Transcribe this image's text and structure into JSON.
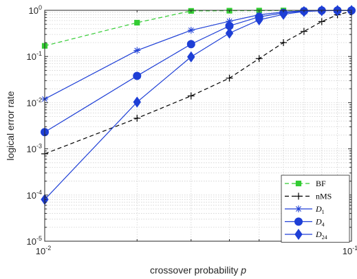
{
  "chart_data": {
    "type": "line",
    "xlabel": "crossover probability",
    "xlabel_var": "p",
    "ylabel": "logical error rate",
    "xscale": "log",
    "yscale": "log",
    "xlim": [
      0.01,
      0.1
    ],
    "ylim": [
      1e-05,
      1
    ],
    "grid": true,
    "minor_grid": true,
    "legend_position": "bottom-right",
    "x_ticks": [
      {
        "base": "10",
        "exp": "-2"
      },
      {
        "base": "10",
        "exp": "-1"
      }
    ],
    "y_ticks": [
      {
        "base": "10",
        "exp": "-5"
      },
      {
        "base": "10",
        "exp": "-4"
      },
      {
        "base": "10",
        "exp": "-3"
      },
      {
        "base": "10",
        "exp": "-2"
      },
      {
        "base": "10",
        "exp": "-1"
      },
      {
        "base": "10",
        "exp": "0"
      }
    ],
    "series": [
      {
        "name": "BF",
        "color": "#33cc33",
        "dash": "dashed",
        "marker": "square",
        "x": [
          0.01,
          0.02,
          0.03,
          0.04,
          0.05,
          0.06,
          0.07,
          0.08,
          0.09,
          0.1
        ],
        "y": [
          0.17,
          0.54,
          0.97,
          0.98,
          0.985,
          0.99,
          0.99,
          0.99,
          0.99,
          0.99
        ]
      },
      {
        "name": "nMS",
        "color": "#000000",
        "dash": "dashed",
        "marker": "plus",
        "x": [
          0.01,
          0.02,
          0.03,
          0.04,
          0.05,
          0.06,
          0.07,
          0.08,
          0.09,
          0.1
        ],
        "y": [
          0.00078,
          0.0046,
          0.014,
          0.034,
          0.09,
          0.2,
          0.35,
          0.57,
          0.8,
          0.95
        ]
      },
      {
        "name": "D",
        "name_sub": "1",
        "color": "#1e3fd6",
        "dash": "solid",
        "marker": "asterisk",
        "x": [
          0.01,
          0.02,
          0.03,
          0.04,
          0.05,
          0.06,
          0.07,
          0.08,
          0.09,
          0.1
        ],
        "y": [
          0.012,
          0.135,
          0.37,
          0.58,
          0.8,
          0.92,
          0.97,
          0.99,
          0.99,
          0.99
        ]
      },
      {
        "name": "D",
        "name_sub": "4",
        "color": "#1e3fd6",
        "dash": "solid",
        "marker": "circle",
        "x": [
          0.01,
          0.02,
          0.03,
          0.04,
          0.05,
          0.06,
          0.07,
          0.08,
          0.09,
          0.1
        ],
        "y": [
          0.0023,
          0.038,
          0.185,
          0.46,
          0.72,
          0.88,
          0.96,
          0.99,
          0.99,
          0.99
        ]
      },
      {
        "name": "D",
        "name_sub": "24",
        "color": "#1e3fd6",
        "dash": "solid",
        "marker": "diamond",
        "x": [
          0.01,
          0.02,
          0.03,
          0.04,
          0.05,
          0.06,
          0.07,
          0.08,
          0.09,
          0.1
        ],
        "y": [
          8e-05,
          0.0103,
          0.098,
          0.32,
          0.62,
          0.82,
          0.94,
          0.98,
          0.99,
          0.99
        ]
      }
    ]
  }
}
